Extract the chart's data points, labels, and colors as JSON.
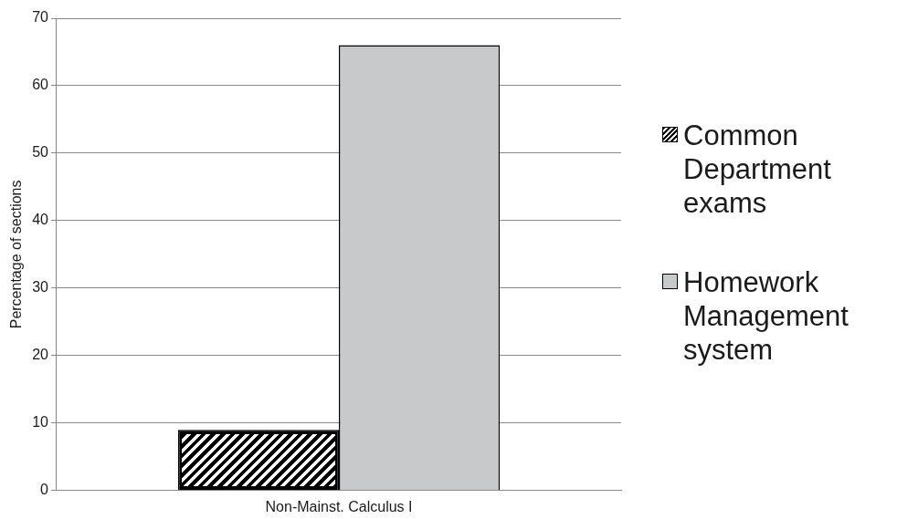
{
  "chart_data": {
    "type": "bar",
    "ylabel": "Percentage of sections",
    "categories": [
      "Non-Mainst. Calculus I"
    ],
    "series": [
      {
        "name": "Common Department exams",
        "color": "#000000",
        "values": [
          9
        ]
      },
      {
        "name": "Homework Management system",
        "color": "#c8c9cb",
        "values": [
          66
        ]
      }
    ],
    "ylim": [
      0,
      70
    ],
    "yticks": [
      0,
      10,
      20,
      30,
      40,
      50,
      60,
      70
    ],
    "grid": "y",
    "legend": "right"
  }
}
